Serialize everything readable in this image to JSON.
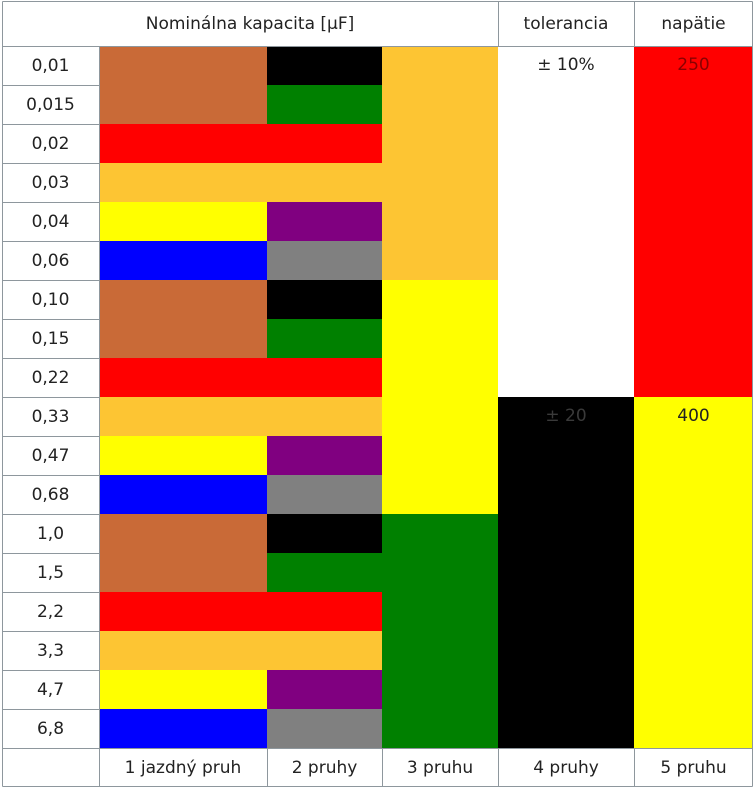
{
  "header": {
    "capacity": "Nominálna kapacita [µF]",
    "tolerance": "tolerancia",
    "voltage": "napätie"
  },
  "rows": [
    "0,01",
    "0,015",
    "0,02",
    "0,03",
    "0,04",
    "0,06",
    "0,10",
    "0,15",
    "0,22",
    "0,33",
    "0,47",
    "0,68",
    "1,0",
    "1,5",
    "2,2",
    "3,3",
    "4,7",
    "6,8"
  ],
  "band1": [
    "#c96a37",
    "#c96a37",
    "#ff0000",
    "#fdc533",
    "#ffff00",
    "#0000ff"
  ],
  "band2": [
    "#000000",
    "#008000",
    "#ff0000",
    "#fdc533",
    "#800080",
    "#808080"
  ],
  "band3": [
    {
      "rows": 6,
      "color": "#fdc533"
    },
    {
      "rows": 6,
      "color": "#ffff00"
    },
    {
      "rows": 6,
      "color": "#008000"
    }
  ],
  "tolerance": [
    {
      "rows": 9,
      "color": "#ffffff",
      "label": "± 10%",
      "text_color": "#222222"
    },
    {
      "rows": 9,
      "color": "#000000",
      "label": "± 20",
      "text_color": "#3a3a3a"
    }
  ],
  "voltage": [
    {
      "rows": 9,
      "color": "#ff0000",
      "label": "250",
      "text_color": "#8a0000"
    },
    {
      "rows": 9,
      "color": "#ffff00",
      "label": "400",
      "text_color": "#222222"
    }
  ],
  "footer": {
    "band1": "1 jazdný pruh",
    "band2": "2 pruhy",
    "band3": "3 pruhu",
    "band4": "4 pruhy",
    "band5": "5 pruhu"
  }
}
